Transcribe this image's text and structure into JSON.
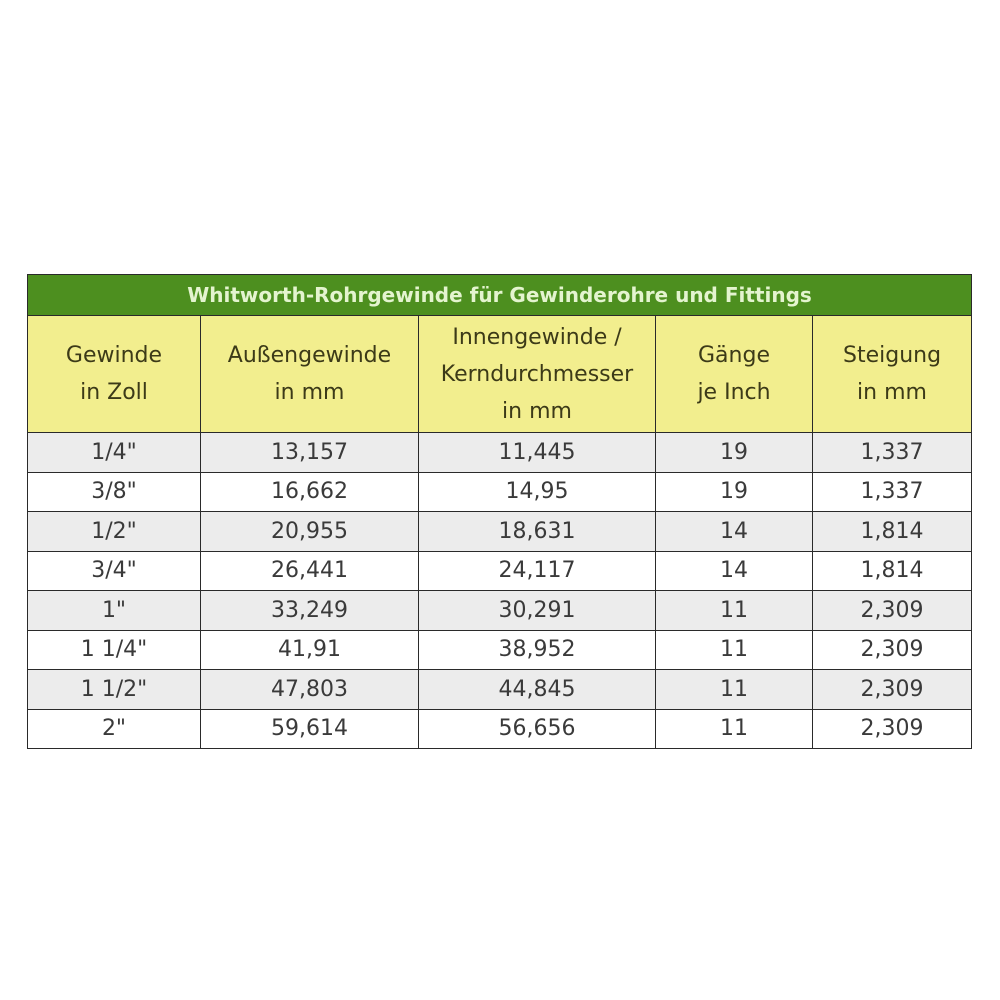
{
  "table": {
    "title": "Whitworth-Rohrgewinde für Gewinderohre und Fittings",
    "headers": [
      [
        "Gewinde",
        "in Zoll"
      ],
      [
        "Außengewinde",
        "in mm"
      ],
      [
        "Innengewinde /",
        "Kerndurchmesser",
        "in mm"
      ],
      [
        "Gänge",
        "je Inch"
      ],
      [
        "Steigung",
        "in mm"
      ]
    ],
    "rows": [
      [
        "1/4\"",
        "13,157",
        "11,445",
        "19",
        "1,337"
      ],
      [
        "3/8\"",
        "16,662",
        "14,95",
        "19",
        "1,337"
      ],
      [
        "1/2\"",
        "20,955",
        "18,631",
        "14",
        "1,814"
      ],
      [
        "3/4\"",
        "26,441",
        "24,117",
        "14",
        "1,814"
      ],
      [
        "1\"",
        "33,249",
        "30,291",
        "11",
        "2,309"
      ],
      [
        "1 1/4\"",
        "41,91",
        "38,952",
        "11",
        "2,309"
      ],
      [
        "1 1/2\"",
        "47,803",
        "44,845",
        "11",
        "2,309"
      ],
      [
        "2\"",
        "59,614",
        "56,656",
        "11",
        "2,309"
      ]
    ],
    "colors": {
      "title_bg": "#4d8f1f",
      "header_bg": "#f2ee8e",
      "stripe_bg": "#ececec"
    }
  }
}
